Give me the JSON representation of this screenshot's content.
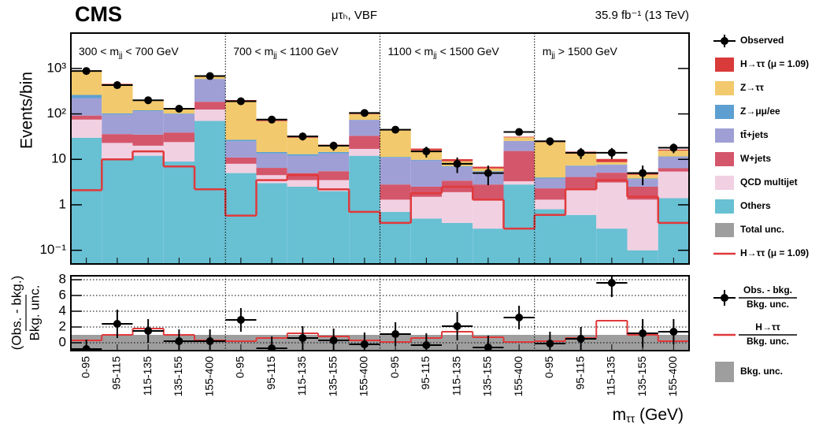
{
  "chart_data": [
    {
      "type": "bar",
      "stacked": true,
      "log_y": true,
      "title": "CMS",
      "subtitle": "μτₕ, VBF",
      "lumi": "35.9 fb⁻¹ (13 TeV)",
      "y_label": "Events/bin",
      "ylim": [
        0.05,
        6000
      ],
      "yticks": [
        {
          "value": 0.1,
          "label": "10⁻¹"
        },
        1,
        10,
        {
          "value": 100,
          "label": "10²"
        },
        {
          "value": 1000,
          "label": "10³"
        }
      ],
      "regions": [
        {
          "pre": "300 < m",
          "sub": "jj",
          "post": " < 700 GeV"
        },
        {
          "pre": "700 < m",
          "sub": "jj",
          "post": " < 1100 GeV"
        },
        {
          "pre": "1100 < m",
          "sub": "jj",
          "post": " < 1500 GeV"
        },
        {
          "pre": "m",
          "sub": "jj",
          "post": " > 1500 GeV"
        }
      ],
      "observed": {
        "name": "Observed",
        "color": "#000000",
        "values": [
          880,
          430,
          200,
          130,
          680,
          190,
          75,
          32,
          20,
          105,
          45,
          15,
          8,
          5,
          40,
          25,
          14,
          14,
          5,
          18
        ],
        "errors": [
          30,
          20,
          14,
          11,
          26,
          14,
          9,
          6,
          4.5,
          10,
          7,
          4,
          3,
          2.3,
          6.5,
          5,
          3.8,
          3.8,
          2.3,
          4.3
        ]
      },
      "series": [
        {
          "name": "H→ττ (μ = 1.09)",
          "color": "#d93a3a",
          "values": [
            15,
            10,
            10,
            5,
            10,
            5,
            3,
            3,
            1.5,
            4,
            1.5,
            1.5,
            1,
            0.6,
            1,
            1,
            1.5,
            1.5,
            0.5,
            0.8
          ]
        },
        {
          "name": "Z→ττ",
          "color": "#f2c96c",
          "values": [
            600,
            350,
            75,
            25,
            80,
            170,
            55,
            17,
            5,
            25,
            32,
            6,
            2,
            0.8,
            5,
            20,
            6,
            1,
            0.8,
            4
          ]
        },
        {
          "name": "Z→μμ/ee",
          "color": "#5c9fd0",
          "values": [
            40,
            5,
            5,
            3,
            5,
            2,
            1,
            1,
            1,
            1,
            0.5,
            0.3,
            0.2,
            0.2,
            0.2,
            0.2,
            0.2,
            0.1,
            0.1,
            0.2
          ]
        },
        {
          "name": "tt̄+jets",
          "color": "#9f9fd6",
          "values": [
            130,
            62,
            80,
            60,
            400,
            14,
            7,
            7,
            8,
            40,
            8,
            7,
            3.5,
            2.5,
            10,
            1.5,
            3,
            2.5,
            1.2,
            5
          ]
        },
        {
          "name": "W+jets",
          "color": "#d4566b",
          "values": [
            17,
            13,
            15,
            15,
            60,
            3,
            2,
            1.5,
            2,
            16,
            1.5,
            1,
            1.5,
            1.5,
            12,
            1,
            2,
            2,
            1.2,
            1
          ]
        },
        {
          "name": "QCD multijet",
          "color": "#f1d0e2",
          "values": [
            45,
            13,
            8,
            15,
            55,
            3,
            1.5,
            1,
            1.5,
            5,
            0.6,
            1,
            1.5,
            1,
            0.5,
            0.5,
            1.5,
            2.8,
            1.2,
            4
          ]
        },
        {
          "name": "Others",
          "color": "#68c0d3",
          "values": [
            30,
            10,
            12,
            9,
            70,
            5,
            3,
            2.5,
            2,
            12,
            0.7,
            0.5,
            0.4,
            0.3,
            2.8,
            0.8,
            0.6,
            0.3,
            0.1,
            1.4
          ]
        }
      ],
      "total_unc": {
        "name": "Total unc.",
        "color": "#9e9e9e"
      },
      "signal_line": {
        "name": "H→ττ (μ = 1.09)",
        "color": "#e0393b",
        "values": [
          2.1,
          10,
          15,
          7,
          2.2,
          0.58,
          3.5,
          4.5,
          2.2,
          0.7,
          0.4,
          1.8,
          2.5,
          1.3,
          0.3,
          0.6,
          2.2,
          3.5,
          1.5,
          0.4
        ]
      }
    },
    {
      "type": "scatter",
      "y_label_top": "(Obs. - bkg.)",
      "y_label_bottom": "Bkg. unc.",
      "ylim": [
        -1,
        8.5
      ],
      "yticks": [
        0,
        2,
        4,
        6,
        8
      ],
      "grid": true,
      "categories": [
        "0-95",
        "95-115",
        "115-135",
        "135-155",
        "155-400",
        "0-95",
        "95-115",
        "115-135",
        "135-155",
        "155-400",
        "0-95",
        "95-115",
        "115-135",
        "135-155",
        "155-400",
        "0-95",
        "95-115",
        "115-135",
        "135-155",
        "155-400"
      ],
      "x_label": {
        "main": "m",
        "sub": "ττ",
        "post": " (GeV)"
      },
      "observed": {
        "name_top": "Obs. - bkg.",
        "name_bottom": "Bkg. unc.",
        "color": "#000000",
        "values": [
          -0.8,
          2.4,
          1.5,
          0.2,
          0.2,
          2.9,
          -0.7,
          0.6,
          0.3,
          -0.2,
          1.1,
          -0.3,
          2.1,
          -0.6,
          3.2,
          -0.1,
          0.5,
          7.6,
          1.2,
          1.4
        ],
        "errors": [
          1.2,
          1.8,
          1.5,
          1.5,
          1.5,
          1.5,
          1.5,
          1.5,
          1.5,
          1.5,
          1.5,
          1.5,
          1.8,
          1.5,
          1.5,
          1.5,
          1.5,
          1.8,
          1.8,
          1.6
        ]
      },
      "signal": {
        "name_top": "H→ττ",
        "name_bottom": "Bkg. unc.",
        "color": "#e0393b",
        "values": [
          0.3,
          1.0,
          1.8,
          1.0,
          0.3,
          0.2,
          0.6,
          1.2,
          0.8,
          0.3,
          0.1,
          0.6,
          1.4,
          0.7,
          0.1,
          0.2,
          0.6,
          2.8,
          1.0,
          0.2
        ]
      },
      "band": {
        "name": "Bkg. unc.",
        "value": 1,
        "color": "#9e9e9e"
      }
    }
  ]
}
